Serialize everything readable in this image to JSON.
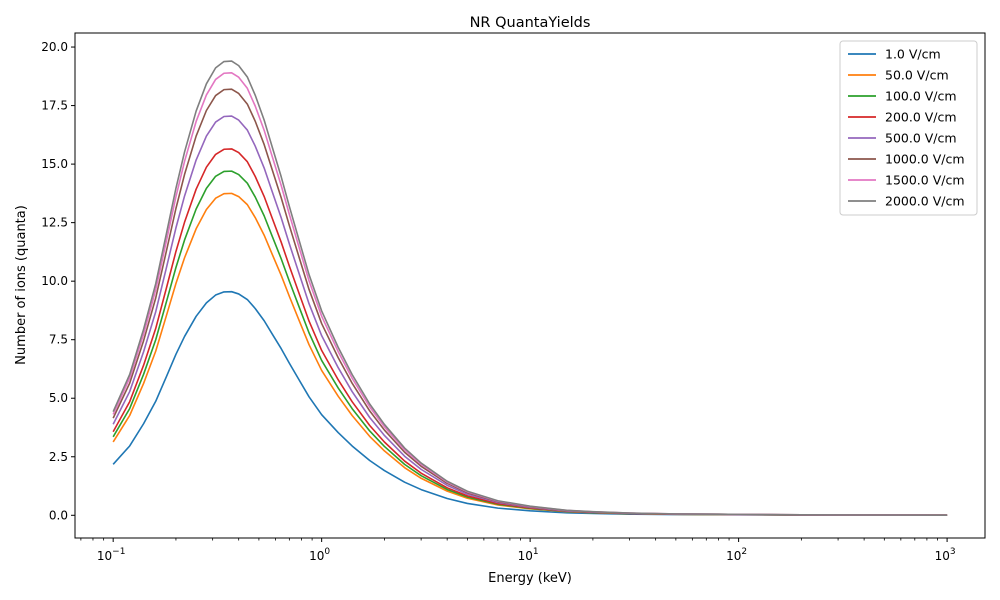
{
  "chart_data": {
    "type": "line",
    "title": "NR QuantaYields",
    "xlabel": "Energy (keV)",
    "ylabel": "Number of ions (quanta)",
    "xscale": "log",
    "xlim": [
      0.0656,
      1520
    ],
    "ylim": [
      -0.97,
      20.6
    ],
    "xticks": [
      {
        "value": 0.1,
        "base": "10",
        "exp": "−1"
      },
      {
        "value": 1,
        "base": "10",
        "exp": "0"
      },
      {
        "value": 10,
        "base": "10",
        "exp": "1"
      },
      {
        "value": 100,
        "base": "10",
        "exp": "2"
      },
      {
        "value": 1000,
        "base": "10",
        "exp": "3"
      }
    ],
    "yticks": [
      {
        "value": 0.0,
        "label": "0.0"
      },
      {
        "value": 2.5,
        "label": "2.5"
      },
      {
        "value": 5.0,
        "label": "5.0"
      },
      {
        "value": 7.5,
        "label": "7.5"
      },
      {
        "value": 10.0,
        "label": "10.0"
      },
      {
        "value": 12.5,
        "label": "12.5"
      },
      {
        "value": 15.0,
        "label": "15.0"
      },
      {
        "value": 17.5,
        "label": "17.5"
      },
      {
        "value": 20.0,
        "label": "20.0"
      }
    ],
    "grid": false,
    "legend_position": "top-right",
    "x": [
      0.1,
      0.12,
      0.14,
      0.16,
      0.18,
      0.2,
      0.22,
      0.25,
      0.28,
      0.31,
      0.34,
      0.37,
      0.4,
      0.44,
      0.48,
      0.53,
      0.58,
      0.64,
      0.7,
      0.78,
      0.87,
      1.0,
      1.2,
      1.4,
      1.7,
      2.0,
      2.5,
      3.0,
      4.0,
      5.0,
      7.0,
      10,
      15,
      20,
      30,
      50,
      80,
      100,
      200,
      500,
      1000
    ],
    "series": [
      {
        "name": "1.0 V/cm",
        "color": "#1f77b4",
        "peak": 9.55
      },
      {
        "name": "50.0 V/cm",
        "color": "#ff7f0e",
        "peak": 13.75
      },
      {
        "name": "100.0 V/cm",
        "color": "#2ca02c",
        "peak": 14.7
      },
      {
        "name": "200.0 V/cm",
        "color": "#d62728",
        "peak": 15.65
      },
      {
        "name": "500.0 V/cm",
        "color": "#9467bd",
        "peak": 17.05
      },
      {
        "name": "1000.0 V/cm",
        "color": "#8c564b",
        "peak": 18.2
      },
      {
        "name": "1500.0 V/cm",
        "color": "#e377c2",
        "peak": 18.9
      },
      {
        "name": "2000.0 V/cm",
        "color": "#7f7f7f",
        "peak": 19.4
      }
    ],
    "shape": [
      0.228,
      0.31,
      0.41,
      0.51,
      0.62,
      0.72,
      0.8,
      0.89,
      0.95,
      0.985,
      0.999,
      1.0,
      0.99,
      0.965,
      0.925,
      0.87,
      0.81,
      0.745,
      0.68,
      0.605,
      0.53,
      0.45,
      0.37,
      0.31,
      0.245,
      0.2,
      0.148,
      0.115,
      0.075,
      0.053,
      0.032,
      0.02,
      0.011,
      0.008,
      0.005,
      0.003,
      0.0025,
      0.002,
      0.001,
      0.0005,
      0.0003
    ]
  }
}
